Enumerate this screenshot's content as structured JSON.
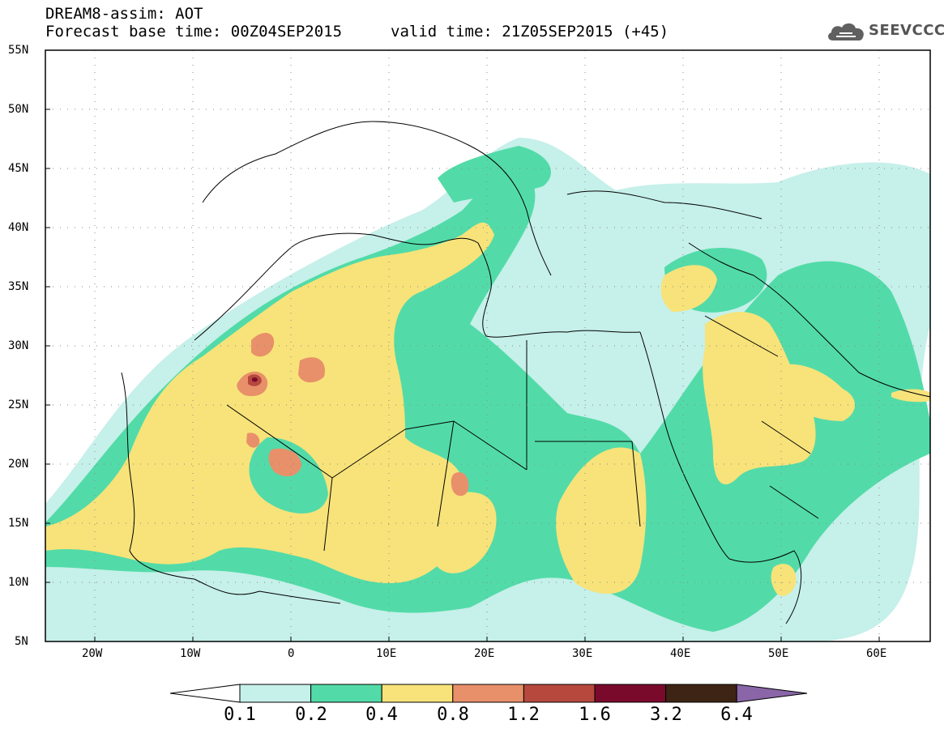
{
  "header": {
    "title": "DREAM8-assim: AOT",
    "base_time": "Forecast base time: 00Z04SEP2015",
    "valid_time": "valid time: 21Z05SEP2015 (+45)",
    "logo_text": "SEEVCCC",
    "logo_icon": "cloud-icon"
  },
  "map": {
    "lon_range": [
      -25,
      65
    ],
    "lat_range": [
      5,
      55
    ],
    "lat_ticks": [
      "5N",
      "10N",
      "15N",
      "20N",
      "25N",
      "30N",
      "35N",
      "40N",
      "45N",
      "50N",
      "55N"
    ],
    "lon_ticks": [
      "20W",
      "10W",
      "0",
      "10E",
      "20E",
      "30E",
      "40E",
      "50E",
      "60E"
    ],
    "grid": true
  },
  "legend": {
    "tick_labels": [
      "0.1",
      "0.2",
      "0.4",
      "0.8",
      "1.2",
      "1.6",
      "3.2",
      "6.4"
    ],
    "colors": [
      "#ffffff",
      "#c6f0ea",
      "#52dba8",
      "#f7e37a",
      "#e8906a",
      "#b6483e",
      "#7a0a2c",
      "#3d2414",
      "#8a66a8"
    ]
  }
}
